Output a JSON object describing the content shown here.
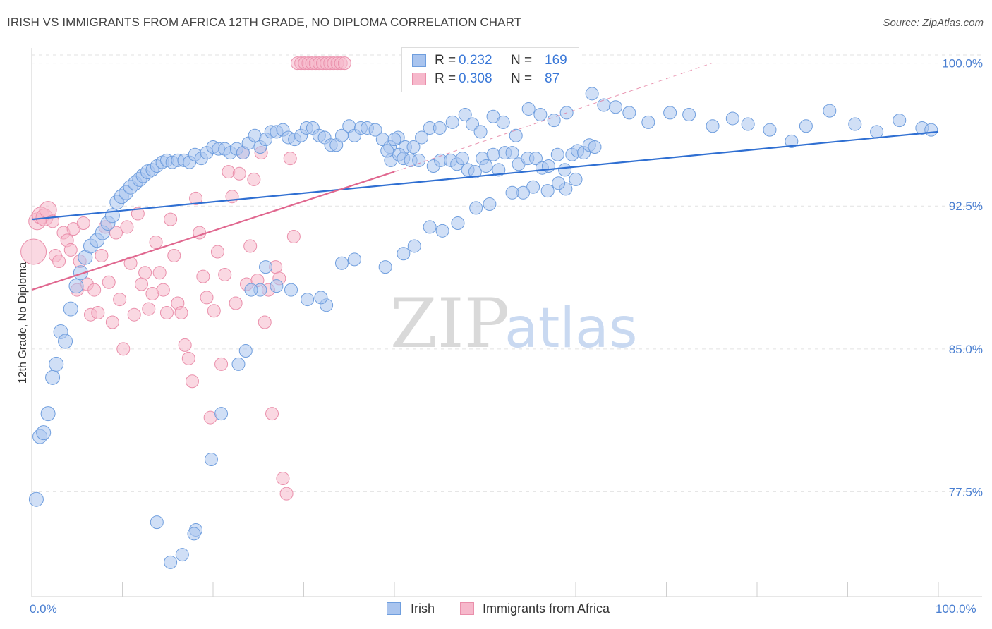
{
  "header": {
    "title": "IRISH VS IMMIGRANTS FROM AFRICA 12TH GRADE, NO DIPLOMA CORRELATION CHART",
    "source": "Source: ZipAtlas.com"
  },
  "watermark": {
    "part1": "ZIP",
    "part2": "atlas"
  },
  "legend": {
    "rows": [
      {
        "r_label": "R = ",
        "r_value": "0.232",
        "n_label": "N = ",
        "n_value": "169"
      },
      {
        "r_label": "R = ",
        "r_value": "0.308",
        "n_label": "N = ",
        "n_value": "87"
      }
    ]
  },
  "bottom_legend": {
    "irish": "Irish",
    "africa": "Immigrants from Africa"
  },
  "colors": {
    "irish_fill": "#a9c4ee",
    "irish_stroke": "#6f9ede",
    "irish_line": "#2f6fd2",
    "africa_fill": "#f6b8cb",
    "africa_stroke": "#ea8fab",
    "africa_line": "#e0678f",
    "grid": "#e2e2e2",
    "tick_text": "#4a7fd1"
  },
  "chart_data": {
    "type": "scatter",
    "title": "IRISH VS IMMIGRANTS FROM AFRICA 12TH GRADE, NO DIPLOMA CORRELATION CHART",
    "ylabel": "12th Grade, No Diploma",
    "xlabel": "",
    "xlim": [
      0,
      100
    ],
    "ylim": [
      72.0,
      100.8
    ],
    "x_ticks": [
      "0.0%",
      "100.0%"
    ],
    "y_ticks": [
      {
        "value": 100.0,
        "label": "100.0%"
      },
      {
        "value": 92.5,
        "label": "92.5%"
      },
      {
        "value": 85.0,
        "label": "85.0%"
      },
      {
        "value": 77.5,
        "label": "77.5%"
      }
    ],
    "grid": true,
    "legend_position": "top-center",
    "series": [
      {
        "name": "Irish",
        "R": 0.232,
        "N": 169,
        "trend": {
          "x": [
            0,
            100
          ],
          "y": [
            91.8,
            96.4
          ]
        },
        "points": [
          [
            0.5,
            77.1
          ],
          [
            0.9,
            80.4
          ],
          [
            1.3,
            80.6
          ],
          [
            1.8,
            81.6
          ],
          [
            2.3,
            83.5
          ],
          [
            2.7,
            84.2
          ],
          [
            3.2,
            85.9
          ],
          [
            3.7,
            85.4
          ],
          [
            4.3,
            87.1
          ],
          [
            4.9,
            88.3
          ],
          [
            5.4,
            89.0
          ],
          [
            5.9,
            89.8
          ],
          [
            6.5,
            90.4
          ],
          [
            7.2,
            90.7
          ],
          [
            7.8,
            91.1
          ],
          [
            8.4,
            91.6
          ],
          [
            8.9,
            92.0
          ],
          [
            9.4,
            92.7
          ],
          [
            9.9,
            93.0
          ],
          [
            10.4,
            93.2
          ],
          [
            10.9,
            93.5
          ],
          [
            11.4,
            93.7
          ],
          [
            11.9,
            93.9
          ],
          [
            12.3,
            94.1
          ],
          [
            12.8,
            94.3
          ],
          [
            13.3,
            94.4
          ],
          [
            13.8,
            94.6
          ],
          [
            14.4,
            94.8
          ],
          [
            14.9,
            94.9
          ],
          [
            15.5,
            94.8
          ],
          [
            16.1,
            94.9
          ],
          [
            16.8,
            94.9
          ],
          [
            17.4,
            94.8
          ],
          [
            18.0,
            95.2
          ],
          [
            18.7,
            95.0
          ],
          [
            19.3,
            95.3
          ],
          [
            20.0,
            95.6
          ],
          [
            20.6,
            95.5
          ],
          [
            21.3,
            95.5
          ],
          [
            21.9,
            95.3
          ],
          [
            22.6,
            95.5
          ],
          [
            23.3,
            95.3
          ],
          [
            23.9,
            95.8
          ],
          [
            24.6,
            96.2
          ],
          [
            25.2,
            95.6
          ],
          [
            25.8,
            96.0
          ],
          [
            26.4,
            96.4
          ],
          [
            27.0,
            96.4
          ],
          [
            27.7,
            96.5
          ],
          [
            28.3,
            96.1
          ],
          [
            29.0,
            96.0
          ],
          [
            29.7,
            96.2
          ],
          [
            30.3,
            96.6
          ],
          [
            31.0,
            96.6
          ],
          [
            31.7,
            96.2
          ],
          [
            32.3,
            96.1
          ],
          [
            33.0,
            95.7
          ],
          [
            33.6,
            95.7
          ],
          [
            34.2,
            96.2
          ],
          [
            35.0,
            96.7
          ],
          [
            35.6,
            96.2
          ],
          [
            36.3,
            96.6
          ],
          [
            37.0,
            96.6
          ],
          [
            37.9,
            96.5
          ],
          [
            38.7,
            96.0
          ],
          [
            39.5,
            95.6
          ],
          [
            40.4,
            96.1
          ],
          [
            41.2,
            95.6
          ],
          [
            42.1,
            95.6
          ],
          [
            43.0,
            96.1
          ],
          [
            43.9,
            96.6
          ],
          [
            45.0,
            96.6
          ],
          [
            46.4,
            96.9
          ],
          [
            47.8,
            97.3
          ],
          [
            48.6,
            96.8
          ],
          [
            49.5,
            96.4
          ],
          [
            50.9,
            97.2
          ],
          [
            52.0,
            96.9
          ],
          [
            53.4,
            96.2
          ],
          [
            54.8,
            97.6
          ],
          [
            56.1,
            97.3
          ],
          [
            57.6,
            97.0
          ],
          [
            59.0,
            97.4
          ],
          [
            61.8,
            98.4
          ],
          [
            63.1,
            97.8
          ],
          [
            64.4,
            97.7
          ],
          [
            65.9,
            97.4
          ],
          [
            68.0,
            96.9
          ],
          [
            70.4,
            97.4
          ],
          [
            72.5,
            97.3
          ],
          [
            75.1,
            96.7
          ],
          [
            77.3,
            97.1
          ],
          [
            79.0,
            96.8
          ],
          [
            81.4,
            96.5
          ],
          [
            83.8,
            95.9
          ],
          [
            85.4,
            96.7
          ],
          [
            88.0,
            97.5
          ],
          [
            90.8,
            96.8
          ],
          [
            93.2,
            96.4
          ],
          [
            95.7,
            97.0
          ],
          [
            98.2,
            96.6
          ],
          [
            99.2,
            96.5
          ],
          [
            40.0,
            96.0
          ],
          [
            39.6,
            94.9
          ],
          [
            40.5,
            95.2
          ],
          [
            41.0,
            95.0
          ],
          [
            41.8,
            94.9
          ],
          [
            39.2,
            95.4
          ],
          [
            42.7,
            94.9
          ],
          [
            44.3,
            94.6
          ],
          [
            45.1,
            94.9
          ],
          [
            46.2,
            94.9
          ],
          [
            46.9,
            94.7
          ],
          [
            47.5,
            95.0
          ],
          [
            48.1,
            94.4
          ],
          [
            48.9,
            94.3
          ],
          [
            49.7,
            95.0
          ],
          [
            50.1,
            94.6
          ],
          [
            50.9,
            95.2
          ],
          [
            51.5,
            94.4
          ],
          [
            52.2,
            95.3
          ],
          [
            53.0,
            95.3
          ],
          [
            53.7,
            94.7
          ],
          [
            54.7,
            95.0
          ],
          [
            55.6,
            95.0
          ],
          [
            56.3,
            94.5
          ],
          [
            57.0,
            94.6
          ],
          [
            58.0,
            95.2
          ],
          [
            58.8,
            94.4
          ],
          [
            59.6,
            95.2
          ],
          [
            60.2,
            95.4
          ],
          [
            60.9,
            95.3
          ],
          [
            61.5,
            95.7
          ],
          [
            62.1,
            95.6
          ],
          [
            60.0,
            93.9
          ],
          [
            58.9,
            93.4
          ],
          [
            58.1,
            93.7
          ],
          [
            56.9,
            93.3
          ],
          [
            55.3,
            93.5
          ],
          [
            54.2,
            93.2
          ],
          [
            53.0,
            93.2
          ],
          [
            50.5,
            92.6
          ],
          [
            49.0,
            92.4
          ],
          [
            47.0,
            91.6
          ],
          [
            45.3,
            91.2
          ],
          [
            43.9,
            91.4
          ],
          [
            42.2,
            90.4
          ],
          [
            41.0,
            90.0
          ],
          [
            39.0,
            89.3
          ],
          [
            35.6,
            89.7
          ],
          [
            34.2,
            89.5
          ],
          [
            32.5,
            87.3
          ],
          [
            31.9,
            87.7
          ],
          [
            30.4,
            87.6
          ],
          [
            28.6,
            88.1
          ],
          [
            27.0,
            88.3
          ],
          [
            25.8,
            89.3
          ],
          [
            25.2,
            88.1
          ],
          [
            24.2,
            88.1
          ],
          [
            23.6,
            84.9
          ],
          [
            22.8,
            84.2
          ],
          [
            20.9,
            81.6
          ],
          [
            19.8,
            79.2
          ],
          [
            18.1,
            75.5
          ],
          [
            17.9,
            75.3
          ],
          [
            16.6,
            74.2
          ],
          [
            15.3,
            73.8
          ],
          [
            13.8,
            75.9
          ]
        ]
      },
      {
        "name": "Immigrants from Africa",
        "R": 0.308,
        "N": 87,
        "trend": {
          "x": [
            0,
            40
          ],
          "y": [
            88.1,
            94.3
          ]
        },
        "trend_dashed": {
          "x": [
            40,
            75
          ],
          "y": [
            94.3,
            100.0
          ]
        },
        "points": [
          [
            0.2,
            90.1
          ],
          [
            0.6,
            91.7
          ],
          [
            1.0,
            92.0
          ],
          [
            1.4,
            91.9
          ],
          [
            1.8,
            92.3
          ],
          [
            2.3,
            91.7
          ],
          [
            2.6,
            89.9
          ],
          [
            3.0,
            89.6
          ],
          [
            3.5,
            91.1
          ],
          [
            3.9,
            90.7
          ],
          [
            4.3,
            90.2
          ],
          [
            4.6,
            91.3
          ],
          [
            5.0,
            88.1
          ],
          [
            5.3,
            89.6
          ],
          [
            5.7,
            91.6
          ],
          [
            6.1,
            88.4
          ],
          [
            6.5,
            86.8
          ],
          [
            6.9,
            88.1
          ],
          [
            7.3,
            86.9
          ],
          [
            7.7,
            89.9
          ],
          [
            8.1,
            91.4
          ],
          [
            8.5,
            88.5
          ],
          [
            8.9,
            86.4
          ],
          [
            9.3,
            91.1
          ],
          [
            9.7,
            87.6
          ],
          [
            10.1,
            85.0
          ],
          [
            10.5,
            91.4
          ],
          [
            10.9,
            89.5
          ],
          [
            11.3,
            86.8
          ],
          [
            11.7,
            92.1
          ],
          [
            12.1,
            88.4
          ],
          [
            12.5,
            89.0
          ],
          [
            12.9,
            87.1
          ],
          [
            13.3,
            87.9
          ],
          [
            13.7,
            90.6
          ],
          [
            14.1,
            89.0
          ],
          [
            14.5,
            88.1
          ],
          [
            14.9,
            86.9
          ],
          [
            15.3,
            91.8
          ],
          [
            15.7,
            89.9
          ],
          [
            16.1,
            87.4
          ],
          [
            16.5,
            86.9
          ],
          [
            16.9,
            85.2
          ],
          [
            17.3,
            84.5
          ],
          [
            17.7,
            83.3
          ],
          [
            18.1,
            92.9
          ],
          [
            18.5,
            91.1
          ],
          [
            18.9,
            88.8
          ],
          [
            19.3,
            87.7
          ],
          [
            19.7,
            81.4
          ],
          [
            20.1,
            87.0
          ],
          [
            20.5,
            90.1
          ],
          [
            20.9,
            84.2
          ],
          [
            21.3,
            88.9
          ],
          [
            21.7,
            94.3
          ],
          [
            22.1,
            93.0
          ],
          [
            22.5,
            87.4
          ],
          [
            22.9,
            94.2
          ],
          [
            23.3,
            95.3
          ],
          [
            23.7,
            88.4
          ],
          [
            24.1,
            90.4
          ],
          [
            24.5,
            93.9
          ],
          [
            24.9,
            88.6
          ],
          [
            25.3,
            95.3
          ],
          [
            25.7,
            86.4
          ],
          [
            26.1,
            88.1
          ],
          [
            26.5,
            81.6
          ],
          [
            26.9,
            89.3
          ],
          [
            27.3,
            88.7
          ],
          [
            27.7,
            78.2
          ],
          [
            28.1,
            77.4
          ],
          [
            28.5,
            95.0
          ],
          [
            28.9,
            90.9
          ],
          [
            29.3,
            100.0
          ],
          [
            29.7,
            100.0
          ],
          [
            30.1,
            100.0
          ],
          [
            30.5,
            100.0
          ],
          [
            30.9,
            100.0
          ],
          [
            31.3,
            100.0
          ],
          [
            31.7,
            100.0
          ],
          [
            32.1,
            100.0
          ],
          [
            32.5,
            100.0
          ],
          [
            32.9,
            100.0
          ],
          [
            33.3,
            100.0
          ],
          [
            33.7,
            100.0
          ],
          [
            34.1,
            100.0
          ],
          [
            34.5,
            100.0
          ]
        ]
      }
    ]
  }
}
